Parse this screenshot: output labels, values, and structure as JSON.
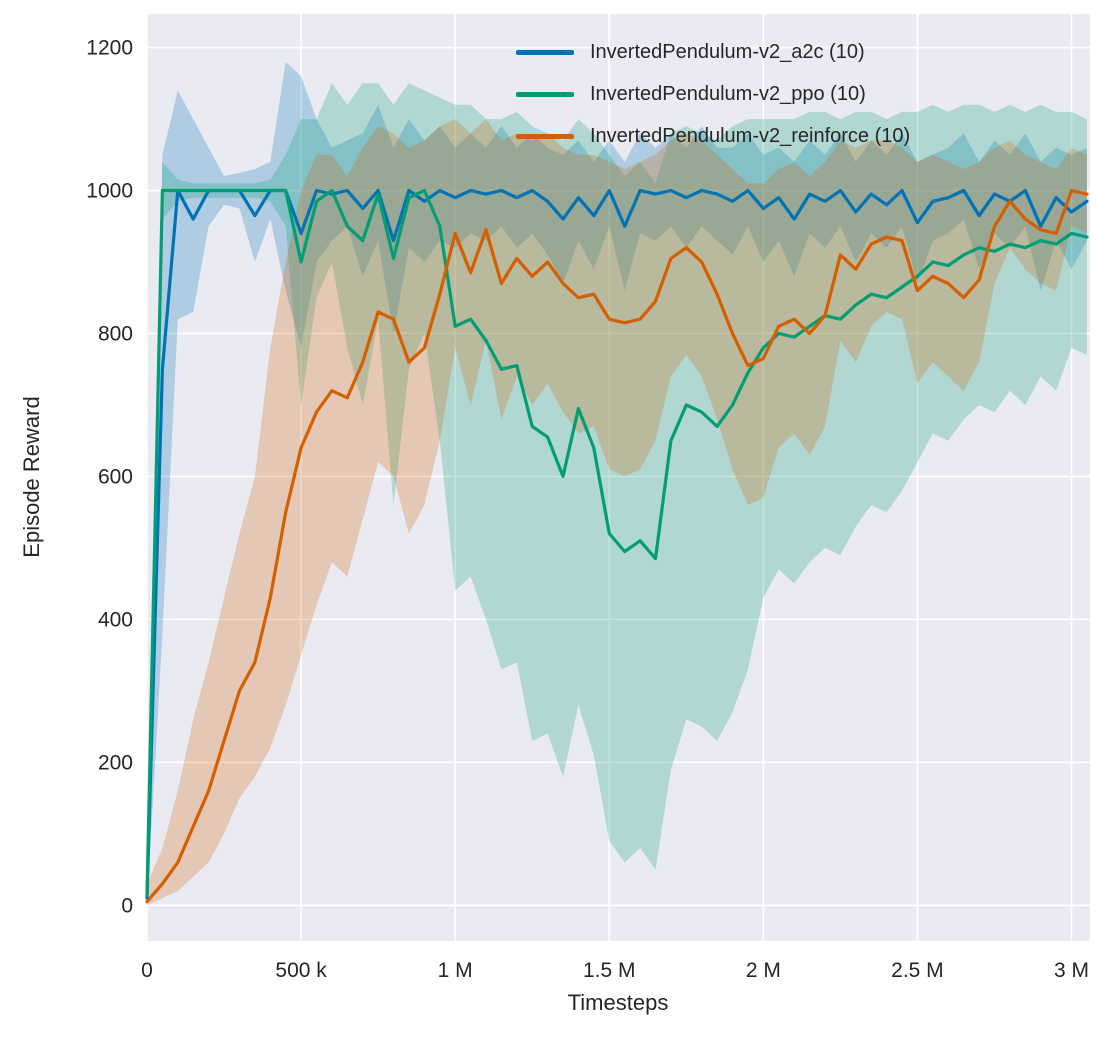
{
  "figure": {
    "background": "#ffffff",
    "axes_background": "#eaeaf2",
    "grid_color": "#ffffff",
    "text_color": "#262626"
  },
  "chart_data": {
    "type": "line",
    "title": "",
    "xlabel": "Timesteps",
    "ylabel": "Episode Reward",
    "grid": true,
    "legend_position": "upper right",
    "band_alpha": 0.25,
    "line_width": 3.2,
    "xlim": [
      0,
      3060000
    ],
    "ylim": [
      -50,
      1247
    ],
    "x_ticks": [
      {
        "value": 0,
        "label": "0"
      },
      {
        "value": 500000,
        "label": "500 k"
      },
      {
        "value": 1000000,
        "label": "1 M"
      },
      {
        "value": 1500000,
        "label": "1.5 M"
      },
      {
        "value": 2000000,
        "label": "2 M"
      },
      {
        "value": 2500000,
        "label": "2.5 M"
      },
      {
        "value": 3000000,
        "label": "3 M"
      }
    ],
    "y_ticks": [
      {
        "value": 0,
        "label": "0"
      },
      {
        "value": 200,
        "label": "200"
      },
      {
        "value": 400,
        "label": "400"
      },
      {
        "value": 600,
        "label": "600"
      },
      {
        "value": 800,
        "label": "800"
      },
      {
        "value": 1000,
        "label": "1000"
      },
      {
        "value": 1200,
        "label": "1200"
      }
    ],
    "x": [
      0,
      50000,
      100000,
      150000,
      200000,
      250000,
      300000,
      350000,
      400000,
      450000,
      500000,
      550000,
      600000,
      650000,
      700000,
      750000,
      800000,
      850000,
      900000,
      950000,
      1000000,
      1050000,
      1100000,
      1150000,
      1200000,
      1250000,
      1300000,
      1350000,
      1400000,
      1450000,
      1500000,
      1550000,
      1600000,
      1650000,
      1700000,
      1750000,
      1800000,
      1850000,
      1900000,
      1950000,
      2000000,
      2050000,
      2100000,
      2150000,
      2200000,
      2250000,
      2300000,
      2350000,
      2400000,
      2450000,
      2500000,
      2550000,
      2600000,
      2650000,
      2700000,
      2750000,
      2800000,
      2850000,
      2900000,
      2950000,
      3000000,
      3050000
    ],
    "series": [
      {
        "name": "InvertedPendulum-v2_a2c (10)",
        "key": "a2c",
        "color": "#0173b2",
        "values": [
          10,
          750,
          1000,
          960,
          1000,
          1000,
          1000,
          965,
          1000,
          1000,
          940,
          1000,
          995,
          1000,
          975,
          1000,
          930,
          1000,
          985,
          1000,
          990,
          1000,
          995,
          1000,
          990,
          1000,
          985,
          960,
          990,
          965,
          1000,
          950,
          1000,
          995,
          1000,
          990,
          1000,
          995,
          985,
          1000,
          975,
          990,
          960,
          995,
          985,
          1000,
          970,
          995,
          980,
          1000,
          955,
          985,
          990,
          1000,
          965,
          995,
          985,
          1000,
          950,
          990,
          970,
          985
        ],
        "lower": [
          0,
          380,
          820,
          830,
          950,
          980,
          975,
          900,
          960,
          860,
          780,
          900,
          930,
          950,
          880,
          930,
          800,
          920,
          900,
          930,
          920,
          940,
          930,
          950,
          920,
          940,
          910,
          870,
          930,
          890,
          950,
          860,
          940,
          930,
          950,
          920,
          950,
          930,
          910,
          950,
          900,
          930,
          880,
          940,
          920,
          950,
          900,
          940,
          920,
          950,
          870,
          930,
          940,
          960,
          890,
          940,
          920,
          950,
          860,
          930,
          890,
          930
        ],
        "upper": [
          60,
          1050,
          1140,
          1100,
          1060,
          1020,
          1025,
          1030,
          1040,
          1180,
          1160,
          1100,
          1060,
          1070,
          1080,
          1120,
          1060,
          1100,
          1070,
          1090,
          1060,
          1080,
          1060,
          1090,
          1060,
          1080,
          1060,
          1050,
          1070,
          1040,
          1070,
          1040,
          1080,
          1060,
          1080,
          1060,
          1090,
          1060,
          1060,
          1080,
          1050,
          1060,
          1040,
          1070,
          1050,
          1080,
          1040,
          1070,
          1050,
          1080,
          1040,
          1050,
          1060,
          1080,
          1040,
          1070,
          1050,
          1080,
          1040,
          1060,
          1050,
          1060
        ]
      },
      {
        "name": "InvertedPendulum-v2_ppo (10)",
        "key": "ppo",
        "color": "#029e73",
        "values": [
          15,
          1000,
          1000,
          1000,
          1000,
          1000,
          1000,
          1000,
          1000,
          1000,
          900,
          985,
          1000,
          950,
          930,
          995,
          905,
          990,
          1000,
          950,
          810,
          820,
          790,
          750,
          755,
          670,
          655,
          600,
          695,
          640,
          520,
          495,
          510,
          485,
          650,
          700,
          690,
          670,
          700,
          745,
          780,
          800,
          795,
          810,
          825,
          820,
          840,
          855,
          850,
          865,
          880,
          900,
          895,
          910,
          920,
          915,
          925,
          920,
          930,
          925,
          940,
          935
        ],
        "lower": [
          0,
          960,
          985,
          990,
          990,
          990,
          990,
          990,
          985,
          950,
          700,
          850,
          900,
          780,
          700,
          820,
          560,
          750,
          800,
          650,
          440,
          460,
          400,
          330,
          340,
          230,
          240,
          180,
          280,
          210,
          90,
          60,
          80,
          50,
          190,
          260,
          250,
          230,
          270,
          330,
          430,
          470,
          450,
          480,
          500,
          490,
          530,
          560,
          550,
          580,
          620,
          660,
          650,
          680,
          700,
          690,
          720,
          700,
          740,
          720,
          780,
          770
        ],
        "upper": [
          80,
          1040,
          1015,
          1010,
          1010,
          1010,
          1010,
          1010,
          1015,
          1050,
          1100,
          1100,
          1150,
          1120,
          1150,
          1150,
          1120,
          1150,
          1140,
          1130,
          1120,
          1120,
          1100,
          1100,
          1110,
          1090,
          1080,
          1070,
          1100,
          1080,
          1050,
          1020,
          1040,
          1010,
          1080,
          1090,
          1080,
          1070,
          1090,
          1100,
          1100,
          1100,
          1100,
          1110,
          1110,
          1100,
          1110,
          1110,
          1100,
          1110,
          1110,
          1120,
          1110,
          1120,
          1120,
          1110,
          1120,
          1110,
          1120,
          1110,
          1110,
          1100
        ]
      },
      {
        "name": "InvertedPendulum-v2_reinforce (10)",
        "key": "reinforce",
        "color": "#d55e00",
        "values": [
          5,
          30,
          60,
          110,
          160,
          230,
          300,
          340,
          430,
          550,
          640,
          690,
          720,
          710,
          760,
          830,
          820,
          760,
          780,
          855,
          940,
          885,
          945,
          870,
          905,
          880,
          900,
          870,
          850,
          855,
          820,
          815,
          820,
          845,
          905,
          920,
          900,
          855,
          800,
          755,
          765,
          810,
          820,
          800,
          825,
          910,
          890,
          925,
          935,
          930,
          860,
          880,
          870,
          850,
          875,
          950,
          985,
          960,
          945,
          940,
          1000,
          995
        ],
        "lower": [
          0,
          10,
          20,
          40,
          60,
          100,
          150,
          180,
          220,
          280,
          350,
          420,
          480,
          460,
          540,
          620,
          600,
          520,
          560,
          650,
          780,
          700,
          790,
          680,
          740,
          700,
          730,
          690,
          660,
          670,
          610,
          600,
          610,
          650,
          740,
          770,
          740,
          680,
          610,
          560,
          570,
          640,
          660,
          630,
          670,
          790,
          760,
          810,
          830,
          820,
          730,
          760,
          740,
          720,
          760,
          870,
          920,
          890,
          870,
          860,
          950,
          940
        ],
        "upper": [
          30,
          80,
          160,
          260,
          340,
          430,
          520,
          600,
          780,
          900,
          1000,
          1050,
          1050,
          1020,
          1060,
          1090,
          1080,
          1060,
          1070,
          1090,
          1100,
          1080,
          1100,
          1070,
          1080,
          1070,
          1080,
          1060,
          1050,
          1050,
          1040,
          1030,
          1040,
          1050,
          1070,
          1080,
          1070,
          1050,
          1030,
          1010,
          1010,
          1030,
          1040,
          1020,
          1040,
          1070,
          1060,
          1070,
          1070,
          1060,
          1040,
          1050,
          1040,
          1030,
          1040,
          1060,
          1070,
          1050,
          1040,
          1030,
          1060,
          1050
        ]
      }
    ]
  }
}
